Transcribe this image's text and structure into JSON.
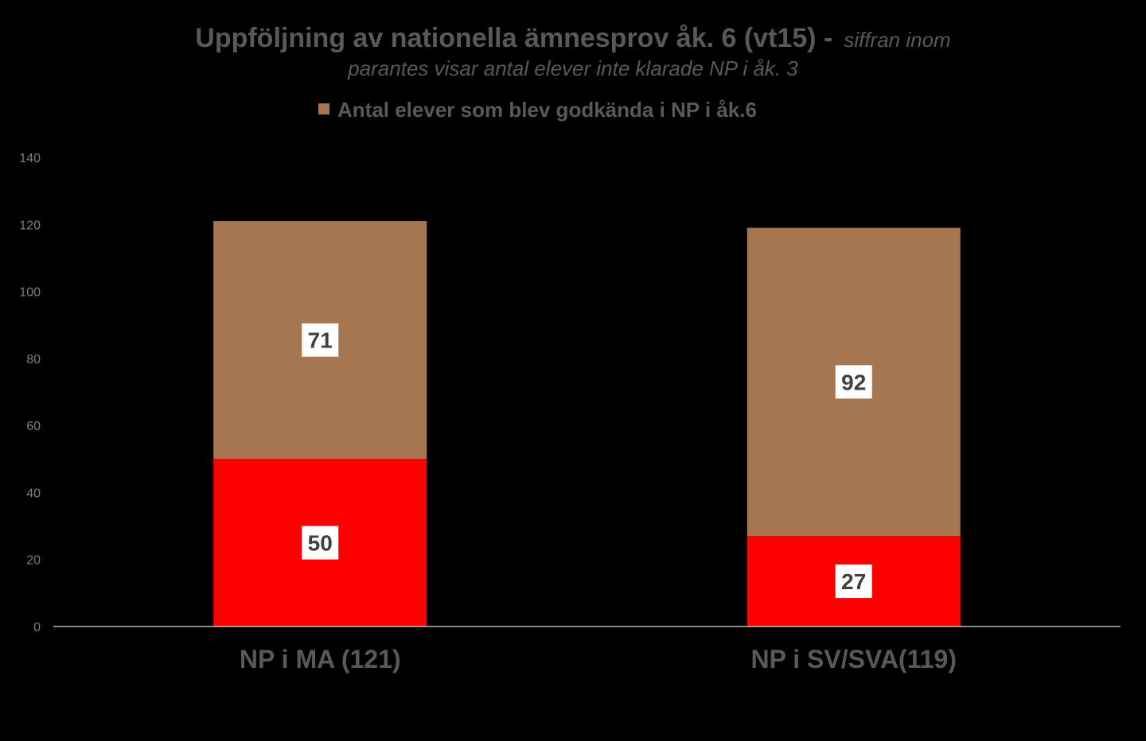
{
  "colors": {
    "background": "#000000",
    "title_text": "#595959",
    "axis_text": "#7f7f7f",
    "category_text": "#595959",
    "axis_line": "#d9d9d9",
    "label_box_fill": "#ffffff",
    "label_box_text": "#404040"
  },
  "title": {
    "main": "Uppföljning av nationella ämnesprov åk. 6 (vt15) -",
    "sub_line1": "siffran inom",
    "sub_line2": "parantes visar antal elever inte klarade NP i åk. 3"
  },
  "chart_data": {
    "type": "bar",
    "stacked": true,
    "categories": [
      "NP i MA (121)",
      "NP i SV/SVA(119)"
    ],
    "series": [
      {
        "values": [
          50,
          27
        ],
        "color": "#ff0000"
      },
      {
        "name": "Antal elever som blev godkända i  NP i åk.6",
        "values": [
          71,
          92
        ],
        "color": "#a57650"
      }
    ],
    "ylim": [
      0,
      140
    ],
    "yticks": [
      0,
      20,
      40,
      60,
      80,
      100,
      120,
      140
    ],
    "ytick_labels": [
      "0",
      "20",
      "40",
      "60",
      "80",
      "100",
      "120",
      "140"
    ],
    "legend": {
      "position": "top",
      "entries": [
        "Antal elever som blev godkända i  NP i åk.6"
      ]
    },
    "data_labels": true,
    "grid": false
  }
}
